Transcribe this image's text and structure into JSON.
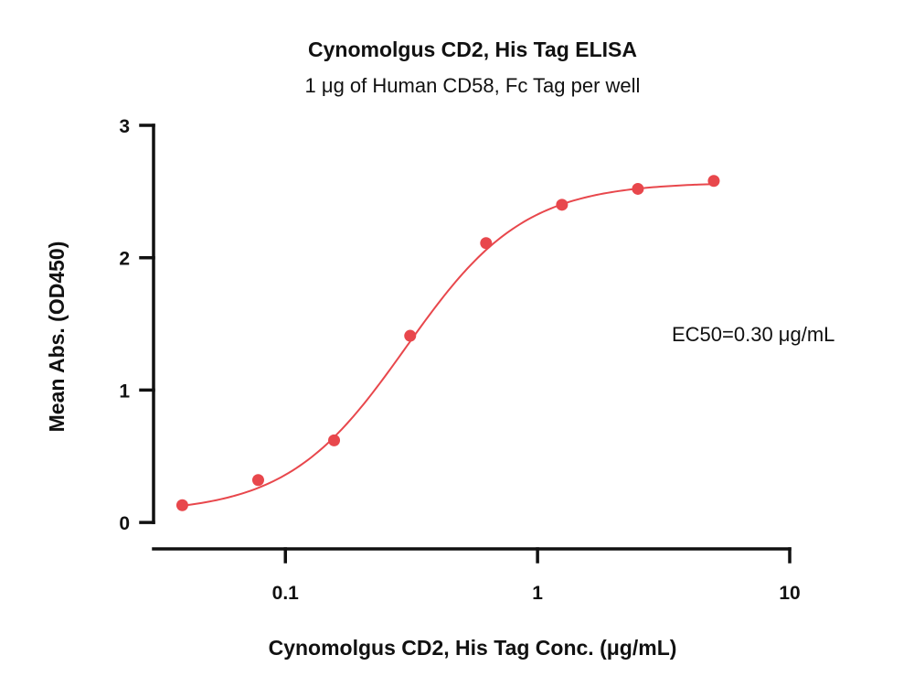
{
  "chart_data": {
    "type": "scatter",
    "title": "Cynomolgus CD2, His Tag ELISA",
    "subtitle": "1 μg of Human CD58, Fc Tag per well",
    "xlabel": "Cynomolgus CD2, His Tag Conc. (μg/mL)",
    "ylabel": "Mean Abs. (OD450)",
    "x_scale": "log",
    "xlim": [
      0.03,
      10
    ],
    "ylim": [
      -0.2,
      3
    ],
    "x_ticks": [
      {
        "value": 0.1,
        "label": "0.1"
      },
      {
        "value": 1,
        "label": "1"
      },
      {
        "value": 10,
        "label": "10"
      }
    ],
    "y_ticks": [
      {
        "value": 0,
        "label": "0"
      },
      {
        "value": 1,
        "label": "1"
      },
      {
        "value": 2,
        "label": "2"
      },
      {
        "value": 3,
        "label": "3"
      }
    ],
    "grid": false,
    "series": [
      {
        "color": "#e8474c",
        "x": [
          0.039,
          0.078,
          0.156,
          0.3125,
          0.625,
          1.25,
          2.5,
          5.0
        ],
        "y": [
          0.13,
          0.32,
          0.62,
          1.41,
          2.11,
          2.4,
          2.52,
          2.58
        ]
      }
    ],
    "fit_curve": {
      "color": "#e8474c",
      "model": "4PL",
      "bottom": 0.07,
      "top": 2.57,
      "ec50": 0.3,
      "hill": 1.85
    },
    "annotation": "EC50=0.30 μg/mL"
  }
}
